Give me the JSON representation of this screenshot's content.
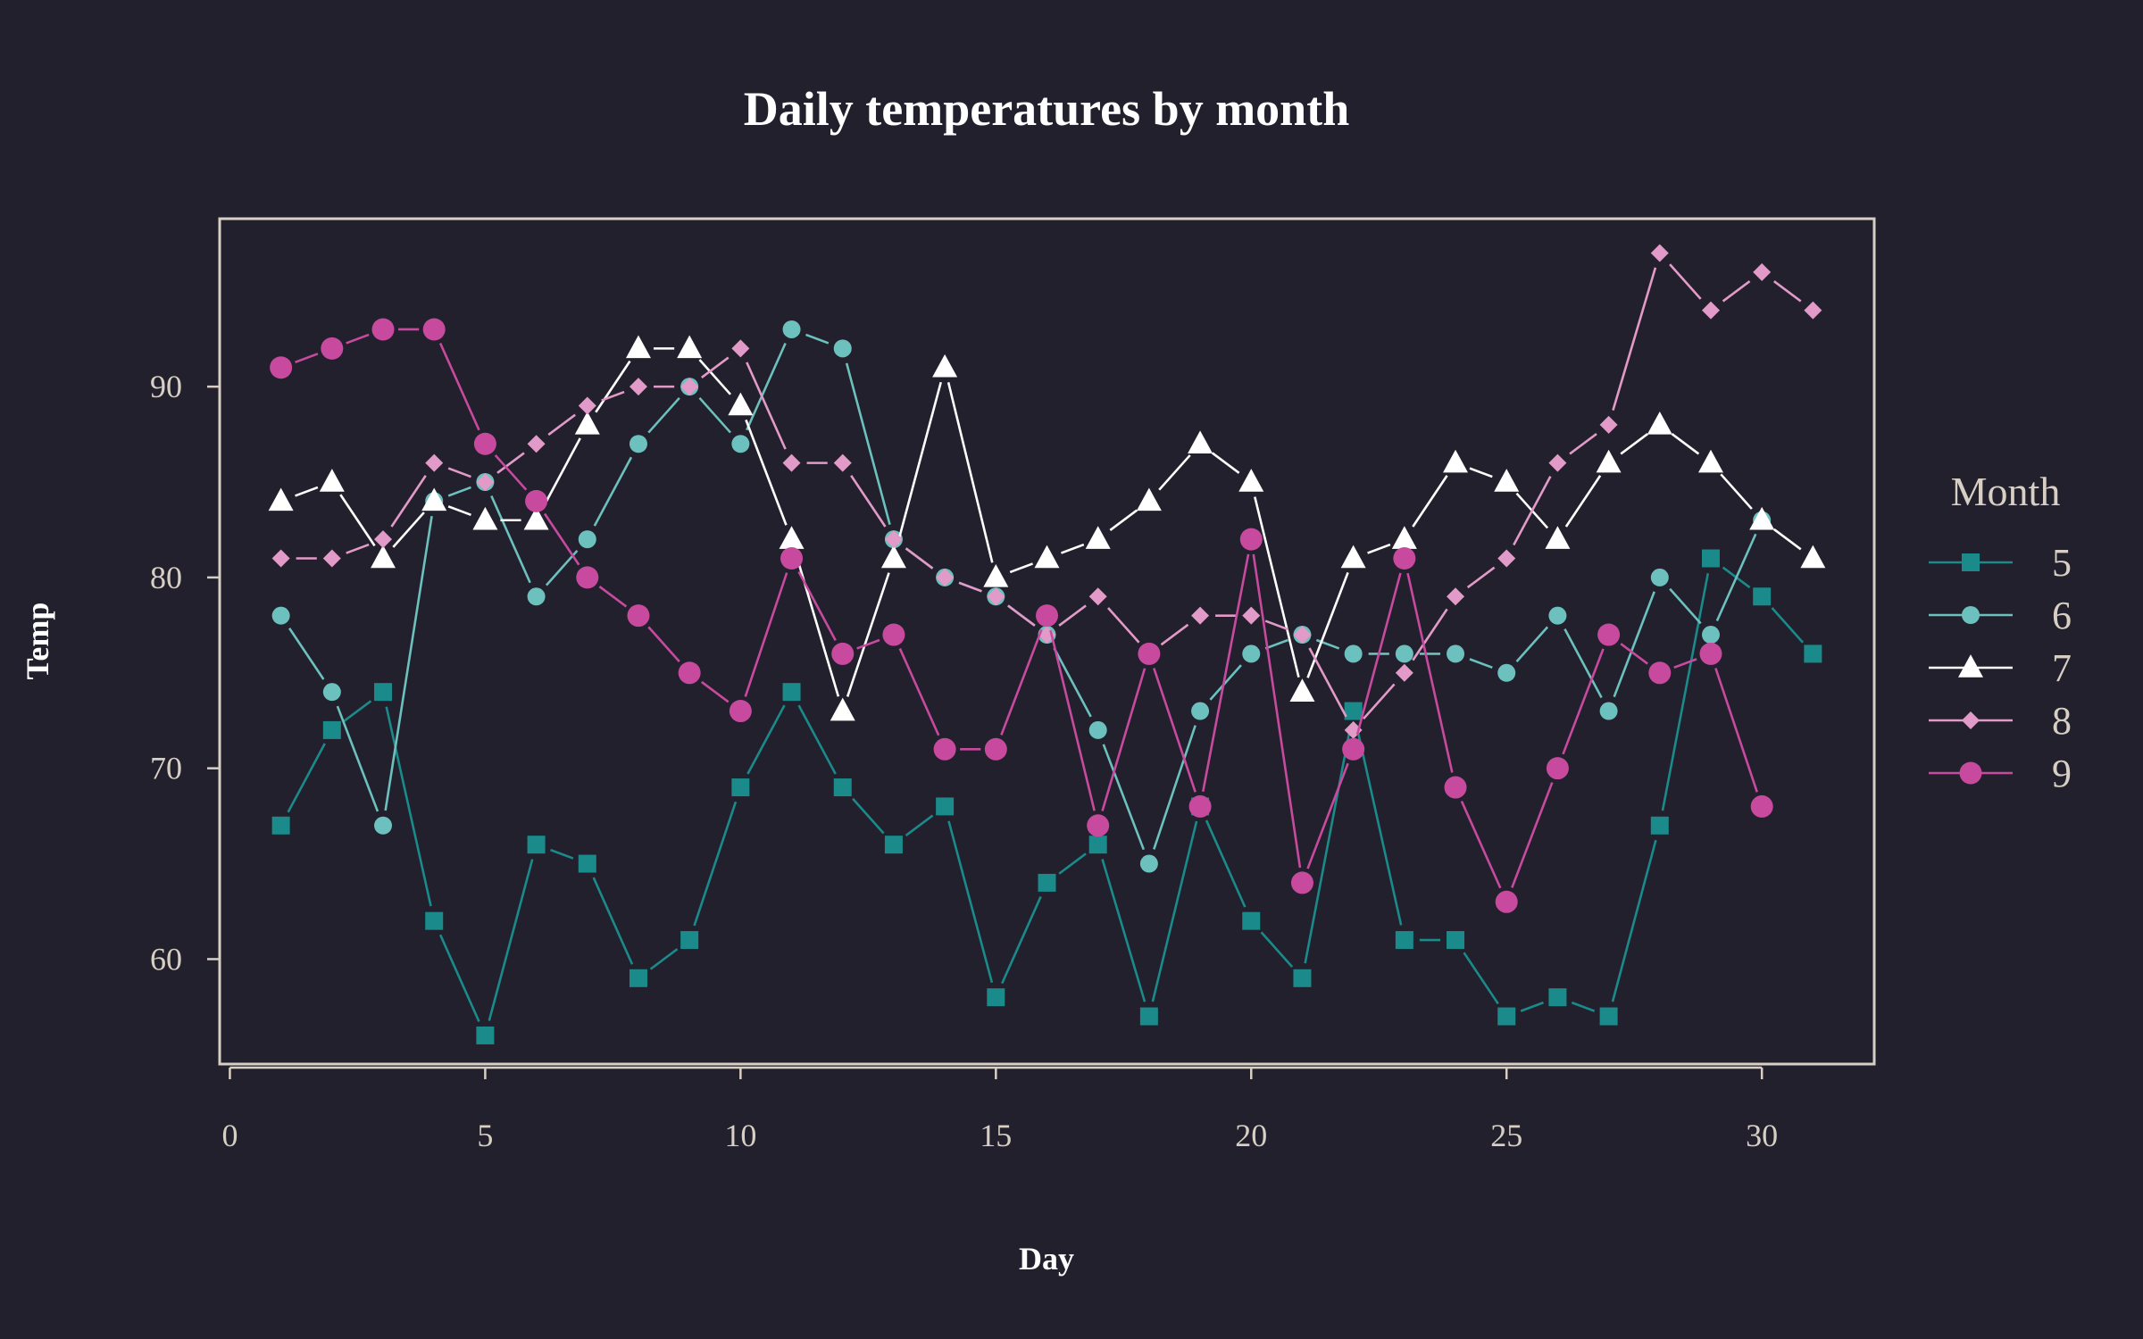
{
  "chart_data": {
    "type": "line",
    "title": "Daily temperatures by month",
    "xlabel": "Day",
    "ylabel": "Temp",
    "xlim": [
      -0.2,
      32.2
    ],
    "ylim": [
      54.5,
      98.8
    ],
    "xticks": [
      "0",
      "5",
      "10",
      "15",
      "20",
      "25",
      "30"
    ],
    "yticks": [
      "60",
      "70",
      "80",
      "90"
    ],
    "legend_title": "Month",
    "legend_position": "right",
    "series": [
      {
        "name": "5",
        "color": "#1a8a8a",
        "marker": "square",
        "x": [
          1,
          2,
          3,
          4,
          5,
          6,
          7,
          8,
          9,
          10,
          11,
          12,
          13,
          14,
          15,
          16,
          17,
          18,
          19,
          20,
          21,
          22,
          23,
          24,
          25,
          26,
          27,
          28,
          29,
          30,
          31
        ],
        "values": [
          67,
          72,
          74,
          62,
          56,
          66,
          65,
          59,
          61,
          69,
          74,
          69,
          66,
          68,
          58,
          64,
          66,
          57,
          68,
          62,
          59,
          73,
          61,
          61,
          57,
          58,
          57,
          67,
          81,
          79,
          76
        ]
      },
      {
        "name": "6",
        "color": "#6cc0bd",
        "marker": "circle",
        "x": [
          1,
          2,
          3,
          4,
          5,
          6,
          7,
          8,
          9,
          10,
          11,
          12,
          13,
          14,
          15,
          16,
          17,
          18,
          19,
          20,
          21,
          22,
          23,
          24,
          25,
          26,
          27,
          28,
          29,
          30
        ],
        "values": [
          78,
          74,
          67,
          84,
          85,
          79,
          82,
          87,
          90,
          87,
          93,
          92,
          82,
          80,
          79,
          77,
          72,
          65,
          73,
          76,
          77,
          76,
          76,
          76,
          75,
          78,
          73,
          80,
          77,
          83
        ]
      },
      {
        "name": "7",
        "color": "#ffffff",
        "marker": "triangle",
        "x": [
          1,
          2,
          3,
          4,
          5,
          6,
          7,
          8,
          9,
          10,
          11,
          12,
          13,
          14,
          15,
          16,
          17,
          18,
          19,
          20,
          21,
          22,
          23,
          24,
          25,
          26,
          27,
          28,
          29,
          30,
          31
        ],
        "values": [
          84,
          85,
          81,
          84,
          83,
          83,
          88,
          92,
          92,
          89,
          82,
          73,
          81,
          91,
          80,
          81,
          82,
          84,
          87,
          85,
          74,
          81,
          82,
          86,
          85,
          82,
          86,
          88,
          86,
          83,
          81
        ]
      },
      {
        "name": "8",
        "color": "#e29ac8",
        "marker": "diamond",
        "x": [
          1,
          2,
          3,
          4,
          5,
          6,
          7,
          8,
          9,
          10,
          11,
          12,
          13,
          14,
          15,
          16,
          17,
          18,
          19,
          20,
          21,
          22,
          23,
          24,
          25,
          26,
          27,
          28,
          29,
          30,
          31
        ],
        "values": [
          81,
          81,
          82,
          86,
          85,
          87,
          89,
          90,
          90,
          92,
          86,
          86,
          82,
          80,
          79,
          77,
          79,
          76,
          78,
          78,
          77,
          72,
          75,
          79,
          81,
          86,
          88,
          97,
          94,
          96,
          94
        ]
      },
      {
        "name": "9",
        "color": "#c74a9f",
        "marker": "circle-large",
        "x": [
          1,
          2,
          3,
          4,
          5,
          6,
          7,
          8,
          9,
          10,
          11,
          12,
          13,
          14,
          15,
          16,
          17,
          18,
          19,
          20,
          21,
          22,
          23,
          24,
          25,
          26,
          27,
          28,
          29,
          30
        ],
        "values": [
          91,
          92,
          93,
          93,
          87,
          84,
          80,
          78,
          75,
          73,
          81,
          76,
          77,
          71,
          71,
          78,
          67,
          76,
          68,
          82,
          64,
          71,
          81,
          69,
          63,
          70,
          77,
          75,
          76,
          68
        ]
      }
    ]
  }
}
